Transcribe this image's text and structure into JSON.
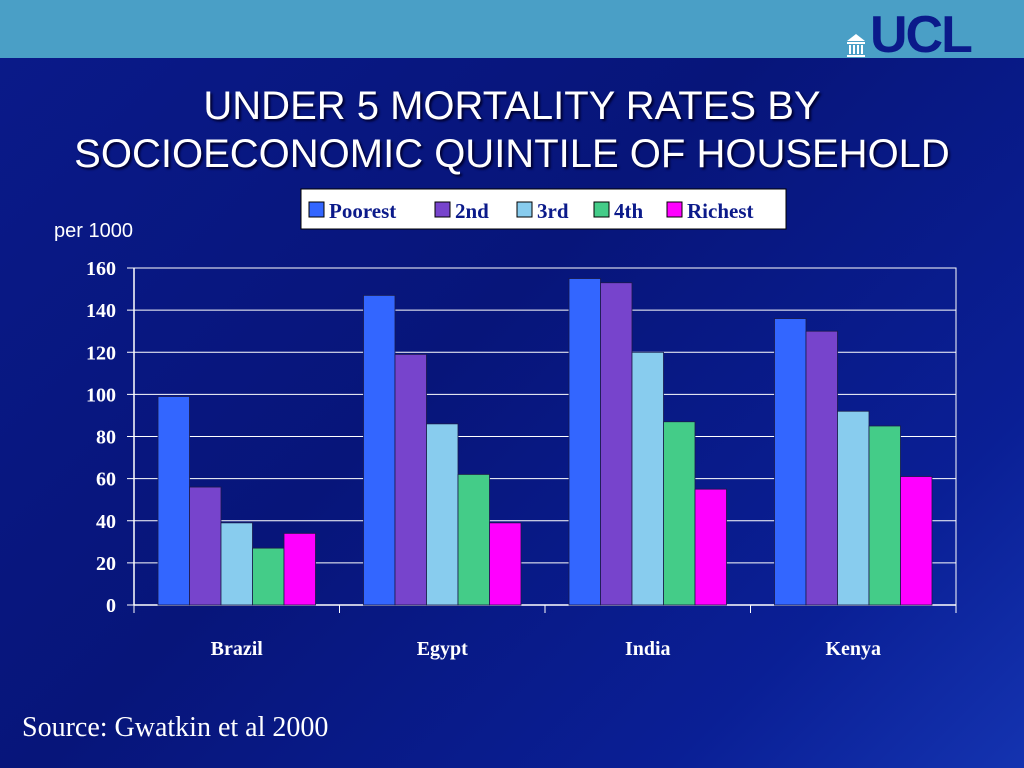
{
  "header": {
    "logo_text": "UCL",
    "title_line1": "UNDER 5 MORTALITY RATES BY",
    "title_line2": "SOCIOECONOMIC QUINTILE OF HOUSEHOLD"
  },
  "source_note": "Source: Gwatkin et al 2000",
  "colors": {
    "topbar": "#4a9fc6",
    "logo": "#0b1a8a",
    "background": "#07157a"
  },
  "chart_data": {
    "type": "bar",
    "title": "",
    "xlabel": "",
    "ylabel": "per 1000",
    "categories": [
      "Brazil",
      "Egypt",
      "India",
      "Kenya"
    ],
    "ylim": [
      0,
      160
    ],
    "yticks": [
      0,
      20,
      40,
      60,
      80,
      100,
      120,
      140,
      160
    ],
    "grid": true,
    "legend_position": "top",
    "series": [
      {
        "name": "Poorest",
        "color": "#3366ff",
        "values": [
          99,
          147,
          155,
          136
        ]
      },
      {
        "name": "2nd",
        "color": "#7744cc",
        "values": [
          56,
          119,
          153,
          130
        ]
      },
      {
        "name": "3rd",
        "color": "#88ccee",
        "values": [
          39,
          86,
          120,
          92
        ]
      },
      {
        "name": "4th",
        "color": "#44cc88",
        "values": [
          27,
          62,
          87,
          85
        ]
      },
      {
        "name": "Richest",
        "color": "#ff00ff",
        "values": [
          34,
          39,
          55,
          61
        ]
      }
    ]
  }
}
